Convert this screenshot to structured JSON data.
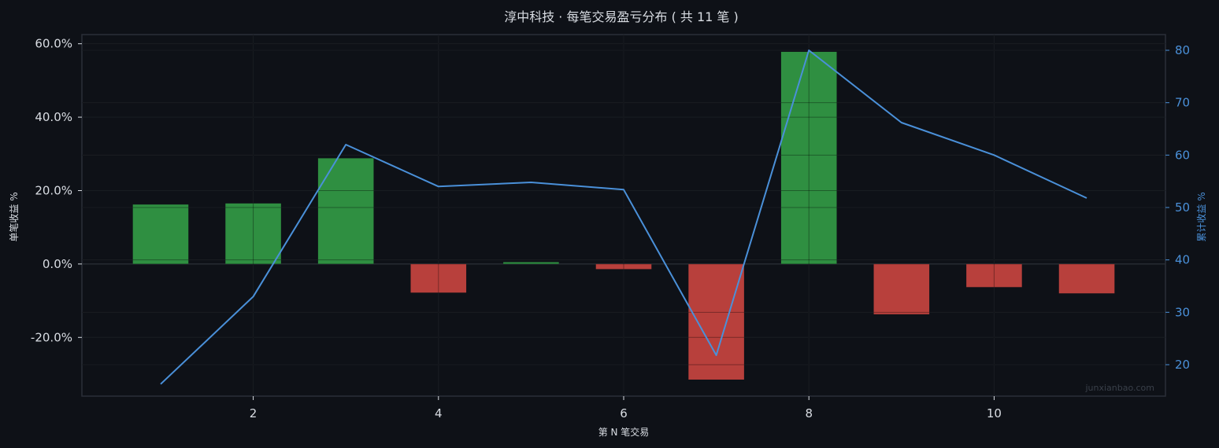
{
  "chart_data": {
    "type": "bar",
    "title": "淳中科技 · 每笔交易盈亏分布 ( 共 11 笔 )",
    "xlabel": "第 N 笔交易",
    "ylabel": "单笔收益 %",
    "y2label": "累计收益 %",
    "x": [
      1,
      2,
      3,
      4,
      5,
      6,
      7,
      8,
      9,
      10,
      11
    ],
    "x_ticks": [
      "2",
      "4",
      "6",
      "8",
      "10"
    ],
    "x_tick_values": [
      2,
      4,
      6,
      8,
      10
    ],
    "xlim": [
      0.15,
      11.85
    ],
    "ylim": [
      -36,
      62.5
    ],
    "y_ticks": [
      "-20.0%",
      "0.0%",
      "20.0%",
      "40.0%",
      "60.0%"
    ],
    "y_tick_values": [
      -20,
      0,
      20,
      40,
      60
    ],
    "y2lim": [
      14,
      83
    ],
    "y2_ticks": [
      "20",
      "30",
      "40",
      "50",
      "60",
      "70",
      "80"
    ],
    "y2_tick_values": [
      20,
      30,
      40,
      50,
      60,
      70,
      80
    ],
    "grid": true,
    "series": [
      {
        "kind": "bar",
        "axis": "left",
        "values": [
          16.2,
          16.5,
          28.8,
          -7.8,
          0.5,
          -1.4,
          -31.5,
          57.8,
          -13.7,
          -6.3,
          -8.0
        ]
      },
      {
        "kind": "line",
        "axis": "right",
        "values": [
          16.3,
          33.0,
          62.0,
          54.0,
          54.8,
          53.4,
          21.8,
          80.0,
          66.2,
          60.0,
          51.8
        ]
      }
    ],
    "watermark": "junxianbao.com"
  },
  "colors": {
    "background": "#0e1117",
    "plot_border": "#2a2f38",
    "grid": "#262b33",
    "positive": "#2f8f41",
    "negative": "#b8403c",
    "line": "#4a90d9",
    "text": "#d9dde3",
    "right_axis": "#4a90d9"
  }
}
